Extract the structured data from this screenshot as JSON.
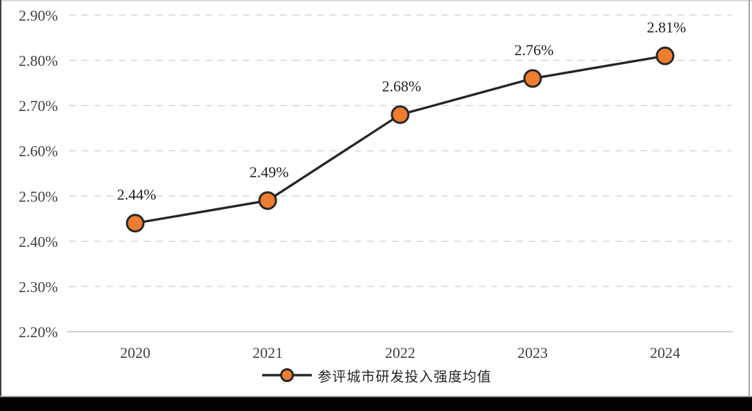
{
  "chart_data": {
    "type": "line",
    "categories": [
      "2020",
      "2021",
      "2022",
      "2023",
      "2024"
    ],
    "series": [
      {
        "name": "参评城市研发投入强度均值",
        "values": [
          2.44,
          2.49,
          2.68,
          2.76,
          2.81
        ],
        "data_labels": [
          "2.44%",
          "2.49%",
          "2.68%",
          "2.76%",
          "2.81%"
        ]
      }
    ],
    "title": "",
    "xlabel": "",
    "ylabel": "",
    "ylim": [
      2.2,
      2.9
    ],
    "y_ticks": [
      {
        "value": 2.9,
        "label": "2.90%"
      },
      {
        "value": 2.8,
        "label": "2.80%"
      },
      {
        "value": 2.7,
        "label": "2.70%"
      },
      {
        "value": 2.6,
        "label": "2.60%"
      },
      {
        "value": 2.5,
        "label": "2.50%"
      },
      {
        "value": 2.4,
        "label": "2.40%"
      },
      {
        "value": 2.3,
        "label": "2.30%"
      },
      {
        "value": 2.2,
        "label": "2.20%"
      }
    ],
    "grid": "horizontal-dashed",
    "legend_position": "bottom",
    "colors": {
      "line": "#262626",
      "marker_fill": "#ED7D31",
      "marker_border": "#262626",
      "gridline": "#d9d9d9",
      "axis_line": "#bfbfbf",
      "tick_text": "#3f3f3f",
      "data_label_text": "#1f1f1f",
      "legend_text": "#262626"
    }
  },
  "frame": {
    "background": "#ffffff",
    "bottom_bar": "#030303"
  }
}
